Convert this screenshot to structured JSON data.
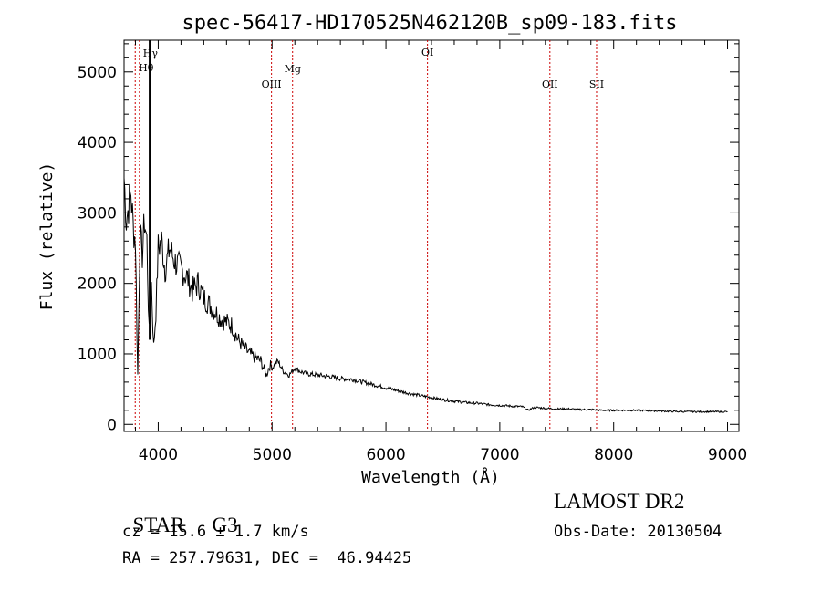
{
  "chart_data": {
    "type": "line",
    "title": "spec-56417-HD170525N462120B_sp09-183.fits",
    "xlabel": "Wavelength (Å)",
    "ylabel": "Flux (relative)",
    "xlim": [
      3700,
      9100
    ],
    "ylim": [
      -100,
      5450
    ],
    "xticks": [
      4000,
      5000,
      6000,
      7000,
      8000,
      9000
    ],
    "yticks": [
      0,
      1000,
      2000,
      3000,
      4000,
      5000
    ],
    "grid": false,
    "line_color": "#000000",
    "marker_color": "#cc0000",
    "series": [
      {
        "x": [
          3700,
          3720,
          3740,
          3760,
          3780,
          3800,
          3820,
          3840,
          3860,
          3880,
          3900,
          3920,
          3940,
          3960,
          3980,
          4000,
          4030,
          4060,
          4100,
          4150,
          4200,
          4250,
          4300,
          4350,
          4400,
          4450,
          4500,
          4550,
          4600,
          4650,
          4700,
          4750,
          4800,
          4850,
          4900,
          4950,
          4980,
          5000,
          5050,
          5100,
          5150,
          5200,
          5250,
          5300,
          5400,
          5500,
          5600,
          5700,
          5800,
          5900,
          6000,
          6100,
          6200,
          6300,
          6400,
          6500,
          6600,
          6700,
          6800,
          6900,
          7000,
          7100,
          7200,
          7250,
          7300,
          7400,
          7500,
          7600,
          7700,
          7800,
          7900,
          8000,
          8200,
          8400,
          8600,
          8800,
          9000
        ],
        "y": [
          3500,
          2900,
          3100,
          3300,
          2800,
          2600,
          700,
          2700,
          2400,
          2900,
          2600,
          1300,
          2000,
          1100,
          1600,
          2500,
          2600,
          2200,
          2500,
          2300,
          2200,
          2100,
          1900,
          2000,
          1800,
          1700,
          1600,
          1500,
          1450,
          1400,
          1200,
          1100,
          1000,
          950,
          900,
          700,
          850,
          800,
          900,
          750,
          700,
          800,
          750,
          720,
          700,
          680,
          650,
          640,
          600,
          560,
          520,
          480,
          440,
          410,
          380,
          350,
          330,
          310,
          300,
          280,
          270,
          260,
          250,
          200,
          240,
          230,
          220,
          220,
          210,
          210,
          200,
          200,
          200,
          190,
          180,
          180,
          180
        ]
      }
    ],
    "line_markers": [
      {
        "label": "Hγ",
        "x": 3835
      },
      {
        "label": "Hθ",
        "x": 3798
      },
      {
        "label": "OIII",
        "x": 4995
      },
      {
        "label": "Mg",
        "x": 5180
      },
      {
        "label": "OI",
        "x": 6365
      },
      {
        "label": "OII",
        "x": 7440
      },
      {
        "label": "SII",
        "x": 7850
      }
    ],
    "peak_line_x": 3925
  },
  "info": {
    "star_type": "STAR",
    "subclass": "G3",
    "survey": "LAMOST DR2",
    "cz": "cz = 15.6 ± 1.7 km/s",
    "obs_date": "Obs-Date: 20130504",
    "radec": "RA = 257.79631, DEC =  46.94425"
  }
}
